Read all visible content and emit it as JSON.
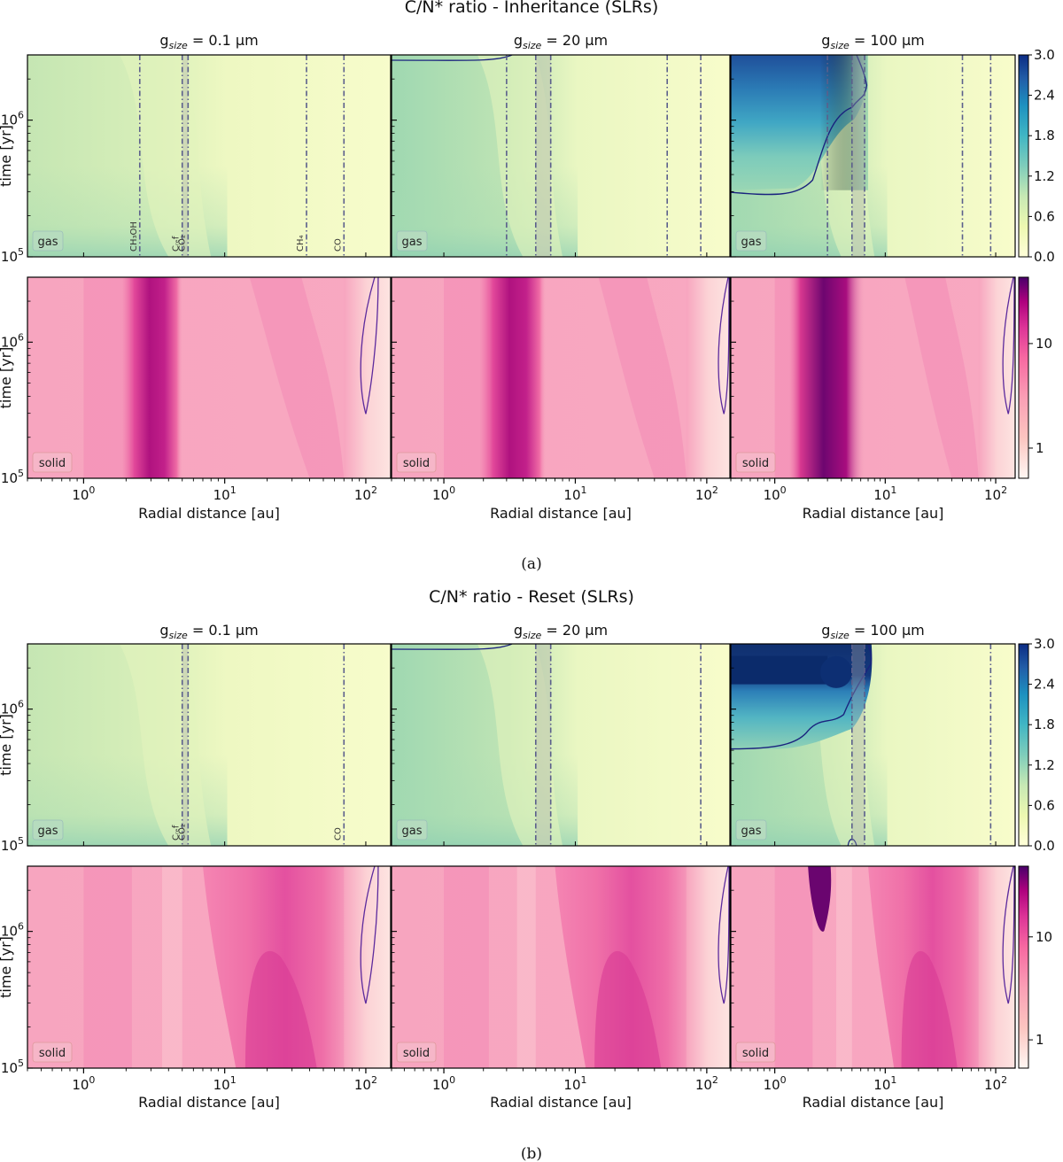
{
  "figure": {
    "caption_a": "(a)",
    "caption_b": "(b)",
    "x_label": "Radial distance [au]",
    "y_label": "time [yr]",
    "gas_label": "gas",
    "solid_label": "solid"
  },
  "chart_data": [
    {
      "type": "heatmap",
      "title": "C/N* ratio - Inheritance (SLRs)",
      "xlabel": "Radial distance [au]",
      "ylabel": "time [yr]",
      "xscale": "log",
      "yscale": "log",
      "xlim": [
        0.4,
        150
      ],
      "ylim": [
        100000,
        3000000
      ],
      "x_ticks": [
        "10^0",
        "10^1",
        "10^2"
      ],
      "y_ticks": [
        "10^5",
        "10^6"
      ],
      "panels": [
        {
          "title_prefix": "g",
          "title_sub": "size",
          "title_value": "= 0.1 μm",
          "grain_size_um": 0.1,
          "gas": {
            "label": "gas",
            "level": "low (0.3–0.6)",
            "snowlines_au": [
              {
                "name": "CH3OH",
                "au": 2.5
              },
              {
                "name": "C_ref",
                "au": 5.0
              },
              {
                "name": "CO2",
                "au": 5.5
              },
              {
                "name": "CH4",
                "au": 38
              },
              {
                "name": "CO",
                "au": 70
              }
            ]
          },
          "solid": {
            "label": "solid",
            "peak_region_au": [
              2.5,
              4.2
            ],
            "peak_level": "~10-15"
          }
        },
        {
          "title_prefix": "g",
          "title_sub": "size",
          "title_value": "= 20 μm",
          "grain_size_um": 20,
          "gas": {
            "label": "gas",
            "level": "low (0.4–0.9)",
            "snowlines_au": [
              {
                "name": "CH3OH",
                "au": 3.0
              },
              {
                "name": "C_ref",
                "au": 5.0
              },
              {
                "name": "CO2",
                "au": 6.5
              },
              {
                "name": "CH4",
                "au": 50
              },
              {
                "name": "CO",
                "au": 90
              }
            ]
          },
          "solid": {
            "label": "solid",
            "peak_region_au": [
              2.5,
              5.0
            ],
            "peak_level": "~10-15"
          }
        },
        {
          "title_prefix": "g",
          "title_sub": "size",
          "title_value": "= 100 μm",
          "grain_size_um": 100,
          "gas": {
            "label": "gas",
            "level": "up to ~2.7 inside 3 au at late times",
            "snowlines_au": [
              {
                "name": "CH3OH",
                "au": 3.0
              },
              {
                "name": "C_ref",
                "au": 5.0
              },
              {
                "name": "CO2",
                "au": 6.5
              },
              {
                "name": "CH4",
                "au": 50
              },
              {
                "name": "CO",
                "au": 90
              }
            ]
          },
          "solid": {
            "label": "solid",
            "peak_region_au": [
              1.8,
              5.5
            ],
            "peak_level": ">20"
          }
        }
      ],
      "colorbar_gas": {
        "ticks": [
          "3.0",
          "2.4",
          "1.8",
          "1.2",
          "0.6",
          "0.0"
        ],
        "range": [
          0,
          3
        ]
      },
      "colorbar_solid": {
        "ticks": [
          "10",
          "1"
        ],
        "scale": "log"
      }
    },
    {
      "type": "heatmap",
      "title": "C/N* ratio - Reset (SLRs)",
      "xlabel": "Radial distance [au]",
      "ylabel": "time [yr]",
      "xscale": "log",
      "yscale": "log",
      "xlim": [
        0.4,
        150
      ],
      "ylim": [
        100000,
        3000000
      ],
      "x_ticks": [
        "10^0",
        "10^1",
        "10^2"
      ],
      "y_ticks": [
        "10^5",
        "10^6"
      ],
      "panels": [
        {
          "title_prefix": "g",
          "title_sub": "size",
          "title_value": "= 0.1 μm",
          "grain_size_um": 0.1,
          "gas": {
            "label": "gas",
            "level": "low (0.3–0.7)",
            "snowlines_au": [
              {
                "name": "C_ref",
                "au": 5.0
              },
              {
                "name": "CO2",
                "au": 5.5
              },
              {
                "name": "CO",
                "au": 70
              }
            ]
          },
          "solid": {
            "label": "solid",
            "peak_region_au": [
              10,
              60
            ],
            "peak_level": "~5"
          }
        },
        {
          "title_prefix": "g",
          "title_sub": "size",
          "title_value": "= 20 μm",
          "grain_size_um": 20,
          "gas": {
            "label": "gas",
            "level": "low (0.4–0.9)",
            "snowlines_au": [
              {
                "name": "C_ref",
                "au": 5.0
              },
              {
                "name": "CO2",
                "au": 6.5
              },
              {
                "name": "CO",
                "au": 90
              }
            ]
          },
          "solid": {
            "label": "solid",
            "peak_region_au": [
              10,
              60
            ],
            "peak_level": "~5-8"
          }
        },
        {
          "title_prefix": "g",
          "title_sub": "size",
          "title_value": "= 100 μm",
          "grain_size_um": 100,
          "gas": {
            "label": "gas",
            "level": ">3.0 inside 5 au after ~1.5 Myr",
            "snowlines_au": [
              {
                "name": "C_ref",
                "au": 5.0
              },
              {
                "name": "CO2",
                "au": 6.5
              },
              {
                "name": "CO",
                "au": 90
              }
            ]
          },
          "solid": {
            "label": "solid",
            "peak_region_au": [
              2.0,
              3.2
            ],
            "peak_level": ">20"
          }
        }
      ],
      "colorbar_gas": {
        "ticks": [
          "3.0",
          "2.4",
          "1.8",
          "1.2",
          "0.6",
          "0.0"
        ],
        "range": [
          0,
          3
        ]
      },
      "colorbar_solid": {
        "ticks": [
          "10",
          "1"
        ],
        "scale": "log"
      }
    }
  ]
}
